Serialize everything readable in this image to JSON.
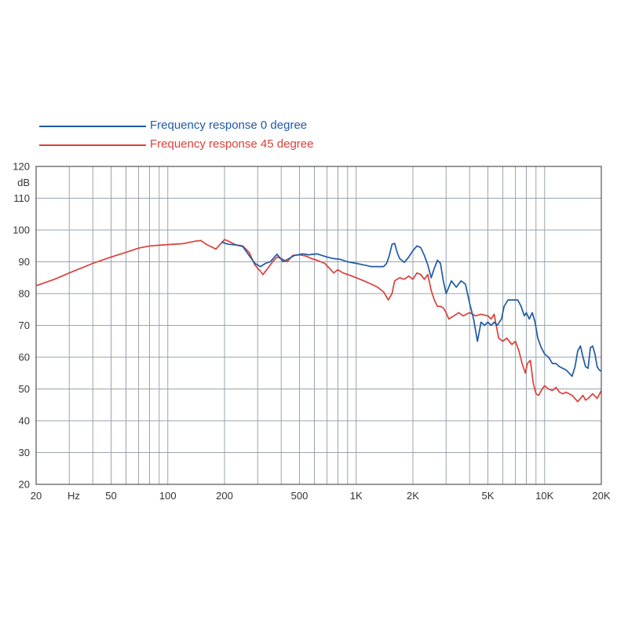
{
  "chart_data": {
    "type": "line",
    "title": "",
    "xlabel": "",
    "ylabel": "dB",
    "x_unit_label": "Hz",
    "x_scale": "log",
    "xlim": [
      20,
      20000
    ],
    "ylim": [
      20,
      120
    ],
    "grid": true,
    "legend_position": "top-left",
    "x_ticks": [
      {
        "value": 20,
        "label": "20"
      },
      {
        "value": 50,
        "label": "50"
      },
      {
        "value": 100,
        "label": "100"
      },
      {
        "value": 200,
        "label": "200"
      },
      {
        "value": 500,
        "label": "500"
      },
      {
        "value": 1000,
        "label": "1K"
      },
      {
        "value": 2000,
        "label": "2K"
      },
      {
        "value": 5000,
        "label": "5K"
      },
      {
        "value": 10000,
        "label": "10K"
      },
      {
        "value": 20000,
        "label": "20K"
      }
    ],
    "y_ticks": [
      {
        "value": 20,
        "label": "20"
      },
      {
        "value": 30,
        "label": "30"
      },
      {
        "value": 40,
        "label": "40"
      },
      {
        "value": 50,
        "label": "50"
      },
      {
        "value": 60,
        "label": "60"
      },
      {
        "value": 70,
        "label": "70"
      },
      {
        "value": 80,
        "label": "80"
      },
      {
        "value": 90,
        "label": "90"
      },
      {
        "value": 100,
        "label": "100"
      },
      {
        "value": 110,
        "label": "110"
      },
      {
        "value": 120,
        "label": "120"
      }
    ],
    "series": [
      {
        "name": "Frequency response 0 degree",
        "color": "#1f5aa6",
        "points": [
          [
            193,
            96.2
          ],
          [
            210,
            95.5
          ],
          [
            230,
            95.3
          ],
          [
            250,
            94.8
          ],
          [
            270,
            92
          ],
          [
            290,
            89.5
          ],
          [
            310,
            88.5
          ],
          [
            330,
            89.5
          ],
          [
            350,
            90
          ],
          [
            380,
            92.4
          ],
          [
            410,
            90
          ],
          [
            440,
            91
          ],
          [
            470,
            92
          ],
          [
            520,
            92.5
          ],
          [
            560,
            92.2
          ],
          [
            620,
            92.5
          ],
          [
            700,
            91.5
          ],
          [
            760,
            91
          ],
          [
            820,
            90.8
          ],
          [
            900,
            90
          ],
          [
            1000,
            89.5
          ],
          [
            1100,
            89
          ],
          [
            1200,
            88.5
          ],
          [
            1300,
            88.5
          ],
          [
            1400,
            88.5
          ],
          [
            1450,
            89.5
          ],
          [
            1500,
            92
          ],
          [
            1550,
            95.5
          ],
          [
            1600,
            95.8
          ],
          [
            1650,
            93
          ],
          [
            1700,
            91
          ],
          [
            1800,
            89.8
          ],
          [
            1900,
            91.5
          ],
          [
            2000,
            93.5
          ],
          [
            2100,
            95
          ],
          [
            2200,
            94.5
          ],
          [
            2300,
            92
          ],
          [
            2400,
            89
          ],
          [
            2500,
            85
          ],
          [
            2600,
            88
          ],
          [
            2700,
            90.5
          ],
          [
            2800,
            89.5
          ],
          [
            2900,
            84
          ],
          [
            3000,
            80
          ],
          [
            3100,
            82
          ],
          [
            3200,
            84
          ],
          [
            3400,
            82
          ],
          [
            3600,
            84
          ],
          [
            3800,
            83
          ],
          [
            4000,
            77
          ],
          [
            4200,
            72
          ],
          [
            4400,
            65
          ],
          [
            4600,
            71
          ],
          [
            4800,
            70
          ],
          [
            5000,
            71
          ],
          [
            5200,
            70
          ],
          [
            5400,
            71
          ],
          [
            5600,
            70
          ],
          [
            5900,
            72
          ],
          [
            6100,
            76
          ],
          [
            6400,
            78
          ],
          [
            6800,
            78
          ],
          [
            7200,
            78
          ],
          [
            7500,
            76
          ],
          [
            7800,
            73
          ],
          [
            8000,
            74
          ],
          [
            8300,
            72
          ],
          [
            8600,
            74
          ],
          [
            8900,
            71
          ],
          [
            9200,
            66
          ],
          [
            9600,
            63
          ],
          [
            10000,
            61
          ],
          [
            10500,
            60
          ],
          [
            11000,
            58
          ],
          [
            11500,
            58
          ],
          [
            12000,
            57
          ],
          [
            13000,
            56
          ],
          [
            14000,
            54
          ],
          [
            14500,
            57
          ],
          [
            15000,
            62
          ],
          [
            15500,
            63.5
          ],
          [
            16000,
            60
          ],
          [
            16500,
            57
          ],
          [
            17000,
            56.5
          ],
          [
            17500,
            63
          ],
          [
            18000,
            63.5
          ],
          [
            18500,
            61
          ],
          [
            19000,
            57
          ],
          [
            19500,
            56
          ],
          [
            20000,
            55.5
          ]
        ]
      },
      {
        "name": "Frequency response 45 degree",
        "color": "#d9413a",
        "points": [
          [
            20,
            82.5
          ],
          [
            25,
            84.5
          ],
          [
            30,
            86.5
          ],
          [
            40,
            89.5
          ],
          [
            50,
            91.5
          ],
          [
            60,
            93
          ],
          [
            70,
            94.3
          ],
          [
            80,
            95
          ],
          [
            90,
            95.2
          ],
          [
            100,
            95.4
          ],
          [
            120,
            95.7
          ],
          [
            140,
            96.5
          ],
          [
            150,
            96.7
          ],
          [
            160,
            95.5
          ],
          [
            180,
            94
          ],
          [
            200,
            97
          ],
          [
            210,
            96.5
          ],
          [
            230,
            95.3
          ],
          [
            250,
            95
          ],
          [
            270,
            93
          ],
          [
            290,
            89
          ],
          [
            310,
            87
          ],
          [
            320,
            86
          ],
          [
            340,
            88
          ],
          [
            360,
            90
          ],
          [
            380,
            91.5
          ],
          [
            400,
            91
          ],
          [
            430,
            90
          ],
          [
            460,
            92
          ],
          [
            500,
            92.2
          ],
          [
            540,
            91.8
          ],
          [
            580,
            91
          ],
          [
            620,
            90.5
          ],
          [
            680,
            89.5
          ],
          [
            720,
            88
          ],
          [
            760,
            86.5
          ],
          [
            800,
            87.5
          ],
          [
            850,
            86.5
          ],
          [
            900,
            86
          ],
          [
            1000,
            85
          ],
          [
            1100,
            84
          ],
          [
            1200,
            83
          ],
          [
            1300,
            82
          ],
          [
            1400,
            80.5
          ],
          [
            1480,
            78
          ],
          [
            1550,
            80
          ],
          [
            1600,
            84
          ],
          [
            1700,
            85
          ],
          [
            1800,
            84.5
          ],
          [
            1900,
            85.5
          ],
          [
            2000,
            84.5
          ],
          [
            2100,
            86.5
          ],
          [
            2200,
            86
          ],
          [
            2300,
            84.5
          ],
          [
            2400,
            86
          ],
          [
            2500,
            81
          ],
          [
            2600,
            78
          ],
          [
            2700,
            76
          ],
          [
            2800,
            76
          ],
          [
            2900,
            75.5
          ],
          [
            3000,
            74
          ],
          [
            3100,
            72
          ],
          [
            3300,
            73
          ],
          [
            3500,
            74
          ],
          [
            3700,
            73
          ],
          [
            4000,
            74
          ],
          [
            4300,
            73
          ],
          [
            4600,
            73.5
          ],
          [
            5000,
            73
          ],
          [
            5200,
            72
          ],
          [
            5400,
            73.5
          ],
          [
            5700,
            66
          ],
          [
            6000,
            65
          ],
          [
            6300,
            66
          ],
          [
            6700,
            64
          ],
          [
            7000,
            65
          ],
          [
            7300,
            62
          ],
          [
            7600,
            58
          ],
          [
            7900,
            55
          ],
          [
            8100,
            58
          ],
          [
            8400,
            59
          ],
          [
            8700,
            52
          ],
          [
            9000,
            48.5
          ],
          [
            9300,
            48
          ],
          [
            9700,
            50
          ],
          [
            10000,
            51
          ],
          [
            10500,
            50
          ],
          [
            11000,
            49.5
          ],
          [
            11500,
            50.5
          ],
          [
            12000,
            49
          ],
          [
            12500,
            48.5
          ],
          [
            13000,
            49
          ],
          [
            14000,
            48
          ],
          [
            15000,
            46
          ],
          [
            16000,
            48
          ],
          [
            16500,
            46.5
          ],
          [
            17000,
            47
          ],
          [
            18000,
            48.5
          ],
          [
            19000,
            47
          ],
          [
            20000,
            49.5
          ]
        ]
      }
    ]
  }
}
